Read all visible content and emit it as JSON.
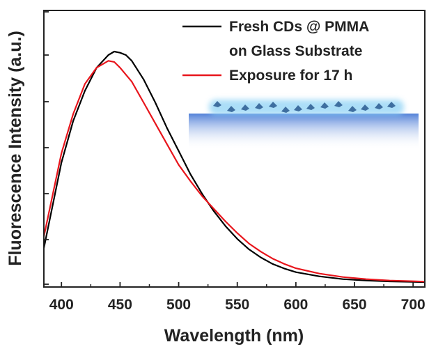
{
  "chart_data": {
    "type": "line",
    "xlabel": "Wavelength (nm)",
    "ylabel": "Fluorescence Intensity (a.u.)",
    "xlim": [
      385,
      710
    ],
    "ylim": [
      0,
      1
    ],
    "x_ticks": [
      "400",
      "450",
      "500",
      "550",
      "600",
      "650",
      "700"
    ],
    "y_ticks_labeled": false,
    "grid": false,
    "legend_position": "top-right",
    "series": [
      {
        "name": "Fresh CDs @ PMMA on Glass Substrate",
        "color": "#000000",
        "x": [
          385,
          400,
          410,
          420,
          430,
          440,
          445,
          450,
          455,
          460,
          470,
          480,
          490,
          500,
          510,
          520,
          530,
          540,
          550,
          560,
          570,
          580,
          590,
          600,
          620,
          640,
          660,
          680,
          700,
          710
        ],
        "y": [
          0.15,
          0.52,
          0.7,
          0.83,
          0.93,
          0.985,
          1.0,
          0.995,
          0.985,
          0.96,
          0.88,
          0.78,
          0.67,
          0.57,
          0.47,
          0.385,
          0.31,
          0.245,
          0.19,
          0.145,
          0.11,
          0.082,
          0.062,
          0.046,
          0.028,
          0.016,
          0.01,
          0.006,
          0.004,
          0.003
        ]
      },
      {
        "name": "Exposure for 17 h",
        "color": "#e8151c",
        "x": [
          385,
          400,
          410,
          420,
          430,
          440,
          445,
          450,
          460,
          470,
          480,
          490,
          500,
          510,
          520,
          530,
          540,
          550,
          560,
          570,
          580,
          590,
          600,
          620,
          640,
          660,
          680,
          700,
          710
        ],
        "y": [
          0.2,
          0.56,
          0.73,
          0.86,
          0.93,
          0.96,
          0.955,
          0.93,
          0.87,
          0.78,
          0.69,
          0.6,
          0.51,
          0.44,
          0.375,
          0.32,
          0.265,
          0.215,
          0.17,
          0.135,
          0.105,
          0.082,
          0.063,
          0.04,
          0.025,
          0.016,
          0.01,
          0.007,
          0.005
        ]
      }
    ],
    "legend": [
      {
        "label_lines": [
          "Fresh CDs @ PMMA",
          "on Glass Substrate"
        ],
        "color": "#000000"
      },
      {
        "label_lines": [
          "Exposure for 17 h"
        ],
        "color": "#e8151c"
      }
    ],
    "inset": {
      "description_image": "film-on-substrate schematic",
      "substrate_color": "#4a7bd6",
      "glow_color": "#8fd3f5",
      "particle_color": "#2a5a90"
    }
  }
}
